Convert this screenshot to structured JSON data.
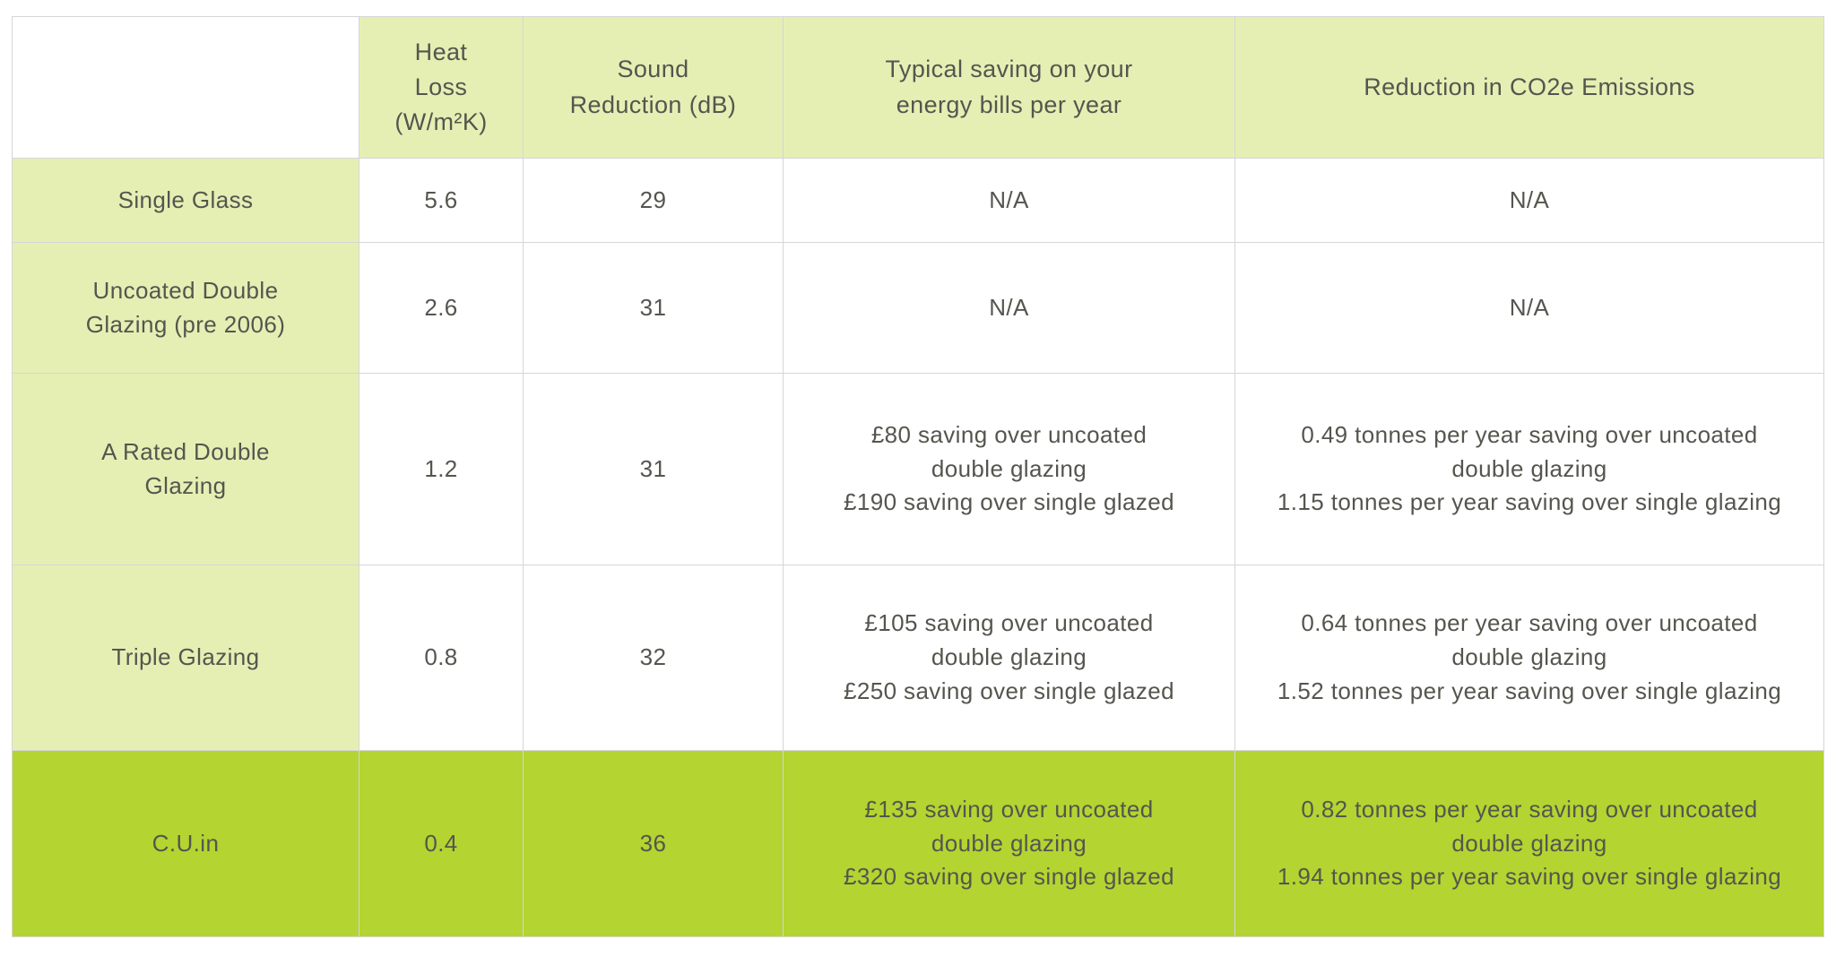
{
  "colors": {
    "page_bg": "#ffffff",
    "header_bg": "#e5efb4",
    "highlight_bg": "#b4d431",
    "text": "#54564e",
    "border": "#d6d6d6"
  },
  "chart_data": {
    "type": "table",
    "columns": [
      "",
      "Heat\nLoss\n(W/m²K)",
      "Sound\nReduction (dB)",
      "Typical saving on your\nenergy bills per year",
      "Reduction in CO2e Emissions"
    ],
    "rows": [
      {
        "label": "Single Glass",
        "heat_loss": "5.6",
        "sound_reduction": "29",
        "energy_saving": "N/A",
        "co2_reduction": "N/A",
        "highlight": false
      },
      {
        "label": "Uncoated Double\nGlazing (pre 2006)",
        "heat_loss": "2.6",
        "sound_reduction": "31",
        "energy_saving": "N/A",
        "co2_reduction": "N/A",
        "highlight": false
      },
      {
        "label": "A Rated Double\nGlazing",
        "heat_loss": "1.2",
        "sound_reduction": "31",
        "energy_saving": "£80 saving over uncoated\ndouble glazing\n£190 saving over single glazed",
        "co2_reduction": "0.49 tonnes per year saving over uncoated\ndouble glazing\n1.15 tonnes per year saving over single glazing",
        "highlight": false
      },
      {
        "label": "Triple Glazing",
        "heat_loss": "0.8",
        "sound_reduction": "32",
        "energy_saving": "£105 saving over uncoated\ndouble glazing\n£250 saving over single glazed",
        "co2_reduction": "0.64 tonnes per year saving over uncoated\ndouble glazing\n1.52 tonnes per year saving over single glazing",
        "highlight": false
      },
      {
        "label": "C.U.in",
        "heat_loss": "0.4",
        "sound_reduction": "36",
        "energy_saving": "£135 saving over uncoated\ndouble glazing\n£320 saving over single glazed",
        "co2_reduction": "0.82 tonnes per year saving over uncoated\ndouble glazing\n1.94 tonnes per year saving over single glazing",
        "highlight": true
      }
    ]
  }
}
